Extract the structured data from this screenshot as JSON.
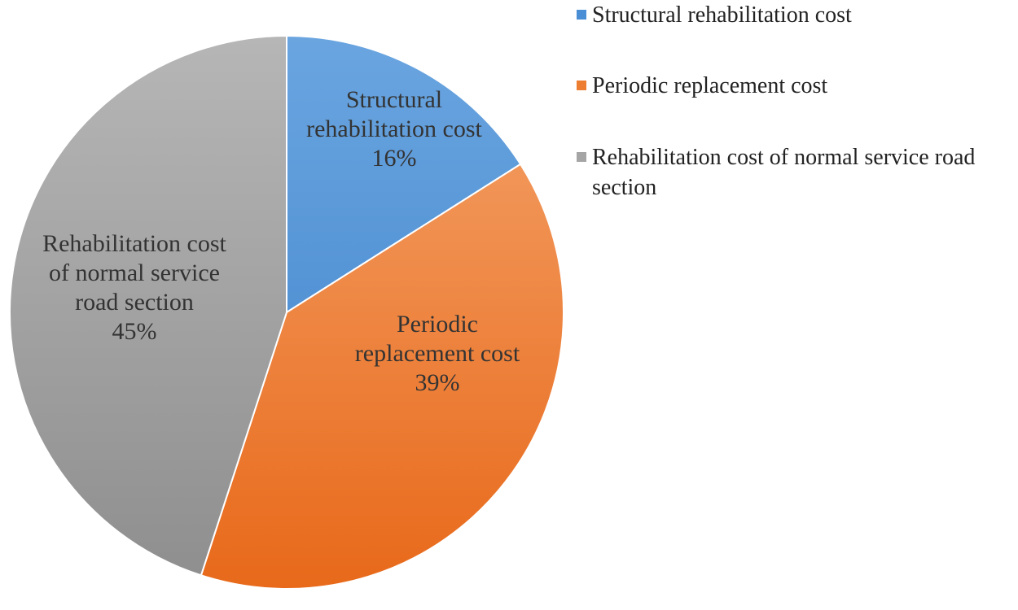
{
  "chart_data": {
    "type": "pie",
    "start_angle_deg": 0,
    "direction": "clockwise",
    "slices": [
      {
        "label": "Structural rehabilitation cost",
        "value": 16,
        "percent_label": "16%",
        "data_label_lines": [
          "Structural",
          "rehabilitation cost"
        ],
        "color_top": "#6aa5e0",
        "color_bottom": "#3b80c9"
      },
      {
        "label": "Periodic replacement cost",
        "value": 39,
        "percent_label": "39%",
        "data_label_lines": [
          "Periodic",
          "replacement cost"
        ],
        "color_top": "#f4a36b",
        "color_bottom": "#e8691a"
      },
      {
        "label": "Rehabilitation cost of normal service road section",
        "value": 45,
        "percent_label": "45%",
        "data_label_lines": [
          "Rehabilitation cost",
          "of normal service",
          "road section"
        ],
        "color_top": "#b6b6b6",
        "color_bottom": "#8e8e8e"
      }
    ],
    "legend": {
      "position": "top-right",
      "entries": [
        "Structural rehabilitation cost",
        "Periodic replacement cost",
        "Rehabilitation cost of normal service road section"
      ]
    }
  }
}
